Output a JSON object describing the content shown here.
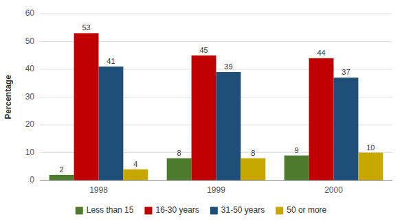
{
  "chart_data": {
    "type": "bar",
    "categories": [
      "1998",
      "1999",
      "2000"
    ],
    "series": [
      {
        "name": "Less than 15",
        "color": "#4e7a2e",
        "values": [
          2,
          8,
          9
        ]
      },
      {
        "name": "16-30 years",
        "color": "#c00000",
        "values": [
          53,
          45,
          44
        ]
      },
      {
        "name": "31-50 years",
        "color": "#1f4e79",
        "values": [
          41,
          39,
          37
        ]
      },
      {
        "name": "50 or more",
        "color": "#c8a800",
        "values": [
          4,
          8,
          10
        ]
      }
    ],
    "ylabel": "Percentage",
    "ylim": [
      0,
      60
    ],
    "yticks": [
      0,
      10,
      20,
      30,
      40,
      50,
      60
    ],
    "grid": true,
    "legend": "bottom",
    "data_labels": true
  }
}
